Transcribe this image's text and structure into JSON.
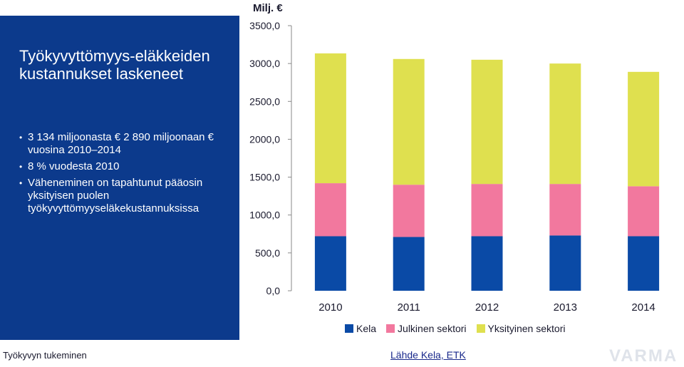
{
  "slide": {
    "title": "Työkyvyttömyys-eläkkeiden kustannukset laskeneet",
    "bullets": [
      "3 134 miljoonasta € 2 890 miljoonaan € vuosina 2010–2014",
      "8 % vuodesta 2010",
      "Väheneminen on tapahtunut pääosin yksityisen puolen työkyvyttömyyseläkekustannuksissa"
    ],
    "footer_left": "Työkyvyn tukeminen",
    "source": "Lähde Kela, ETK",
    "brand": "VARMA"
  },
  "colors": {
    "panel": "#0c3a8c",
    "kela": "#0a4aa6",
    "julkinen": "#f2789e",
    "yksityinen": "#dfe04f"
  },
  "chart_data": {
    "type": "bar",
    "stacked": true,
    "title": "",
    "unit_label": "Milj. €",
    "xlabel": "",
    "ylabel": "Milj. €",
    "ylim": [
      0,
      3500
    ],
    "yticks": [
      "0,0",
      "500,0",
      "1000,0",
      "1500,0",
      "2000,0",
      "2500,0",
      "3000,0",
      "3500,0"
    ],
    "grid": false,
    "legend_position": "bottom",
    "categories": [
      "2010",
      "2011",
      "2012",
      "2013",
      "2014"
    ],
    "series": [
      {
        "name": "Kela",
        "color": "#0a4aa6",
        "values": [
          720,
          710,
          720,
          730,
          720
        ]
      },
      {
        "name": "Julkinen sektori",
        "color": "#f2789e",
        "values": [
          700,
          690,
          690,
          680,
          660
        ]
      },
      {
        "name": "Yksityinen sektori",
        "color": "#dfe04f",
        "values": [
          1714,
          1660,
          1640,
          1590,
          1510
        ]
      }
    ]
  }
}
